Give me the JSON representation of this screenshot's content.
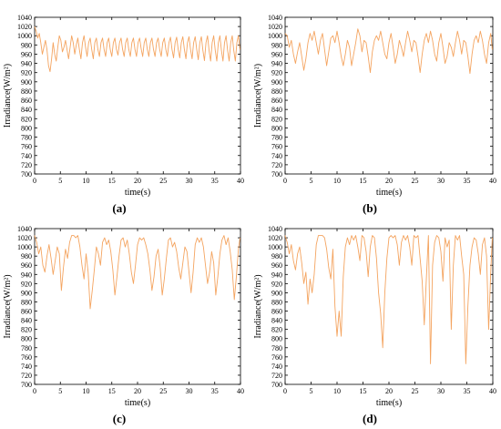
{
  "chart_data": [
    {
      "type": "line",
      "panel_label": "(a)",
      "xlabel": "time(s)",
      "ylabel": "Irradiance(W/m²)",
      "xlim": [
        0,
        40
      ],
      "ylim": [
        700,
        1040
      ],
      "xticks": [
        0,
        5,
        10,
        15,
        20,
        25,
        30,
        35,
        40
      ],
      "yticks": [
        700,
        720,
        740,
        760,
        780,
        800,
        820,
        840,
        860,
        880,
        900,
        920,
        940,
        960,
        980,
        1000,
        1020,
        1040
      ],
      "color": "#F4A460",
      "series": [
        {
          "x": [
            0,
            0.3,
            0.6,
            0.9,
            1.2,
            1.5,
            1.8,
            2.1,
            2.4,
            2.7,
            3.0,
            3.3,
            3.6,
            3.9,
            4.2,
            4.5,
            4.8,
            5.1,
            5.4,
            5.7,
            6.0,
            6.3,
            6.6,
            6.9,
            7.2,
            7.5,
            7.8,
            8.1,
            8.4,
            8.7,
            9.0,
            9.3,
            9.6,
            9.9,
            10.2,
            10.5,
            10.8,
            11.1,
            11.4,
            11.7,
            12.0,
            12.3,
            12.6,
            12.9,
            13.2,
            13.5,
            13.8,
            14.1,
            14.4,
            14.7,
            15.0,
            15.3,
            15.6,
            15.9,
            16.2,
            16.5,
            16.8,
            17.1,
            17.4,
            17.7,
            18.0,
            18.3,
            18.6,
            18.9,
            19.2,
            19.5,
            19.8,
            20.1,
            20.4,
            20.7,
            21.0,
            21.3,
            21.6,
            21.9,
            22.2,
            22.5,
            22.8,
            23.1,
            23.4,
            23.7,
            24.0,
            24.3,
            24.6,
            24.9,
            25.2,
            25.5,
            25.8,
            26.1,
            26.4,
            26.7,
            27.0,
            27.3,
            27.6,
            27.9,
            28.2,
            28.5,
            28.8,
            29.1,
            29.4,
            29.7,
            30.0,
            30.3,
            30.6,
            30.9,
            31.2,
            31.5,
            31.8,
            32.1,
            32.4,
            32.7,
            33.0,
            33.3,
            33.6,
            33.9,
            34.2,
            34.5,
            34.8,
            35.1,
            35.4,
            35.7,
            36.0,
            36.3,
            36.6,
            36.9,
            37.2,
            37.5,
            37.8,
            38.1,
            38.4,
            38.7,
            39.0,
            39.3,
            39.6,
            39.9
          ],
          "y": [
            1020,
            1010,
            995,
            1005,
            985,
            960,
            975,
            990,
            970,
            935,
            922,
            950,
            985,
            960,
            945,
            975,
            1000,
            990,
            965,
            975,
            990,
            970,
            950,
            975,
            1000,
            985,
            960,
            980,
            995,
            970,
            950,
            985,
            1000,
            975,
            955,
            985,
            995,
            970,
            950,
            985,
            995,
            970,
            955,
            985,
            995,
            970,
            955,
            985,
            995,
            970,
            955,
            985,
            995,
            970,
            958,
            985,
            995,
            970,
            955,
            985,
            995,
            970,
            955,
            985,
            995,
            970,
            955,
            985,
            995,
            972,
            955,
            985,
            995,
            970,
            955,
            985,
            995,
            970,
            955,
            985,
            995,
            970,
            955,
            985,
            995,
            970,
            955,
            985,
            997,
            970,
            952,
            985,
            997,
            970,
            952,
            985,
            998,
            970,
            950,
            985,
            998,
            970,
            950,
            985,
            998,
            970,
            948,
            985,
            998,
            968,
            946,
            985,
            1000,
            968,
            945,
            985,
            1000,
            968,
            945,
            985,
            1000,
            968,
            945,
            985,
            1000,
            968,
            945,
            985,
            1000,
            968,
            945,
            985,
            1000,
            970
          ]
        }
      ]
    },
    {
      "type": "line",
      "panel_label": "(b)",
      "xlabel": "time(s)",
      "ylabel": "Irradiance(W/m²)",
      "xlim": [
        0,
        40
      ],
      "ylim": [
        700,
        1040
      ],
      "xticks": [
        0,
        5,
        10,
        15,
        20,
        25,
        30,
        35,
        40
      ],
      "yticks": [
        700,
        720,
        740,
        760,
        780,
        800,
        820,
        840,
        860,
        880,
        900,
        920,
        940,
        960,
        980,
        1000,
        1020,
        1040
      ],
      "color": "#F4A460",
      "series": [
        {
          "x": [
            0,
            0.4,
            0.8,
            1.2,
            1.6,
            2.0,
            2.4,
            2.8,
            3.2,
            3.6,
            4.0,
            4.4,
            4.8,
            5.2,
            5.6,
            6.0,
            6.4,
            6.8,
            7.2,
            7.6,
            8.0,
            8.4,
            8.8,
            9.2,
            9.6,
            10.0,
            10.4,
            10.8,
            11.2,
            11.6,
            12.0,
            12.4,
            12.8,
            13.2,
            13.6,
            14.0,
            14.4,
            14.8,
            15.2,
            15.6,
            16.0,
            16.4,
            16.8,
            17.2,
            17.6,
            18.0,
            18.4,
            18.8,
            19.2,
            19.6,
            20.0,
            20.4,
            20.8,
            21.2,
            21.6,
            22.0,
            22.4,
            22.8,
            23.2,
            23.6,
            24.0,
            24.4,
            24.8,
            25.2,
            25.6,
            26.0,
            26.4,
            26.8,
            27.2,
            27.6,
            28.0,
            28.4,
            28.8,
            29.2,
            29.6,
            30.0,
            30.4,
            30.8,
            31.2,
            31.6,
            32.0,
            32.4,
            32.8,
            33.2,
            33.6,
            34.0,
            34.4,
            34.8,
            35.2,
            35.6,
            36.0,
            36.4,
            36.8,
            37.2,
            37.6,
            38.0,
            38.4,
            38.8,
            39.2,
            39.6,
            39.9
          ],
          "y": [
            1005,
            1000,
            975,
            990,
            960,
            940,
            965,
            985,
            955,
            925,
            950,
            985,
            1005,
            990,
            1010,
            985,
            960,
            990,
            1005,
            970,
            935,
            965,
            995,
            1000,
            985,
            1010,
            985,
            955,
            935,
            960,
            990,
            975,
            935,
            960,
            985,
            1015,
            1000,
            965,
            990,
            985,
            955,
            920,
            965,
            990,
            1000,
            990,
            1010,
            985,
            960,
            950,
            985,
            1005,
            975,
            940,
            960,
            990,
            975,
            955,
            985,
            1010,
            990,
            965,
            990,
            985,
            955,
            920,
            960,
            990,
            1005,
            985,
            1010,
            990,
            960,
            945,
            985,
            1005,
            975,
            940,
            955,
            985,
            975,
            955,
            985,
            1010,
            990,
            960,
            990,
            985,
            955,
            918,
            960,
            990,
            1000,
            985,
            1010,
            990,
            960,
            940,
            985,
            1005,
            970
          ]
        }
      ]
    },
    {
      "type": "line",
      "panel_label": "(c)",
      "xlabel": "time(s)",
      "ylabel": "Irradiance(W/m²)",
      "xlim": [
        0,
        40
      ],
      "ylim": [
        700,
        1040
      ],
      "xticks": [
        0,
        5,
        10,
        15,
        20,
        25,
        30,
        35,
        40
      ],
      "yticks": [
        700,
        720,
        740,
        760,
        780,
        800,
        820,
        840,
        860,
        880,
        900,
        920,
        940,
        960,
        980,
        1000,
        1020,
        1040
      ],
      "color": "#F4A460",
      "series": [
        {
          "x": [
            0,
            0.4,
            0.8,
            1.2,
            1.6,
            2.0,
            2.4,
            2.8,
            3.2,
            3.6,
            4.0,
            4.4,
            4.8,
            5.2,
            5.6,
            6.0,
            6.4,
            6.8,
            7.2,
            7.6,
            8.0,
            8.4,
            8.8,
            9.2,
            9.6,
            10.0,
            10.4,
            10.8,
            11.2,
            11.6,
            12.0,
            12.4,
            12.8,
            13.2,
            13.6,
            14.0,
            14.4,
            14.8,
            15.2,
            15.6,
            16.0,
            16.4,
            16.8,
            17.2,
            17.6,
            18.0,
            18.4,
            18.8,
            19.2,
            19.6,
            20.0,
            20.4,
            20.8,
            21.2,
            21.6,
            22.0,
            22.4,
            22.8,
            23.2,
            23.6,
            24.0,
            24.4,
            24.8,
            25.2,
            25.6,
            26.0,
            26.4,
            26.8,
            27.2,
            27.6,
            28.0,
            28.4,
            28.8,
            29.2,
            29.6,
            30.0,
            30.4,
            30.8,
            31.2,
            31.6,
            32.0,
            32.4,
            32.8,
            33.2,
            33.6,
            34.0,
            34.4,
            34.8,
            35.2,
            35.6,
            36.0,
            36.4,
            36.8,
            37.2,
            37.6,
            38.0,
            38.4,
            38.8,
            39.2,
            39.6,
            39.9
          ],
          "y": [
            1025,
            1010,
            985,
            1000,
            960,
            945,
            980,
            1005,
            975,
            940,
            970,
            1000,
            985,
            905,
            955,
            995,
            975,
            1010,
            1025,
            1025,
            1020,
            1025,
            1000,
            960,
            930,
            985,
            945,
            865,
            905,
            950,
            1000,
            985,
            960,
            1010,
            1020,
            1005,
            1015,
            990,
            950,
            895,
            935,
            980,
            1015,
            1020,
            1000,
            1015,
            985,
            945,
            920,
            960,
            1005,
            1020,
            1015,
            1020,
            1005,
            985,
            950,
            905,
            935,
            980,
            995,
            955,
            895,
            930,
            975,
            1015,
            1020,
            1000,
            1010,
            990,
            955,
            930,
            965,
            1000,
            990,
            945,
            900,
            945,
            1005,
            1020,
            1010,
            1020,
            1000,
            960,
            920,
            945,
            990,
            965,
            895,
            935,
            985,
            1015,
            1025,
            1005,
            1020,
            990,
            950,
            885,
            935,
            995,
            1020
          ]
        }
      ]
    },
    {
      "type": "line",
      "panel_label": "(d)",
      "xlabel": "time(s)",
      "ylabel": "Irradiance(W/m²)",
      "xlim": [
        0,
        40
      ],
      "ylim": [
        700,
        1040
      ],
      "xticks": [
        0,
        5,
        10,
        15,
        20,
        25,
        30,
        35,
        40
      ],
      "yticks": [
        700,
        720,
        740,
        760,
        780,
        800,
        820,
        840,
        860,
        880,
        900,
        920,
        940,
        960,
        980,
        1000,
        1020,
        1040
      ],
      "color": "#F4A460",
      "series": [
        {
          "x": [
            0,
            0.4,
            0.8,
            1.2,
            1.6,
            2.0,
            2.4,
            2.8,
            3.2,
            3.6,
            4.0,
            4.4,
            4.8,
            5.2,
            5.6,
            6.0,
            6.4,
            6.8,
            7.2,
            7.6,
            8.0,
            8.4,
            8.8,
            9.2,
            9.6,
            10.0,
            10.4,
            10.8,
            11.2,
            11.6,
            12.0,
            12.4,
            12.8,
            13.2,
            13.6,
            14.0,
            14.4,
            14.8,
            15.2,
            15.6,
            16.0,
            16.4,
            16.8,
            17.2,
            17.6,
            18.0,
            18.4,
            18.8,
            19.2,
            19.6,
            20.0,
            20.4,
            20.8,
            21.2,
            21.6,
            22.0,
            22.4,
            22.8,
            23.2,
            23.6,
            24.0,
            24.4,
            24.8,
            25.2,
            25.6,
            26.0,
            26.4,
            26.8,
            27.2,
            27.6,
            28.0,
            28.4,
            28.8,
            29.2,
            29.6,
            30.0,
            30.4,
            30.8,
            31.2,
            31.6,
            32.0,
            32.4,
            32.8,
            33.2,
            33.6,
            34.0,
            34.4,
            34.8,
            35.2,
            35.6,
            36.0,
            36.4,
            36.8,
            37.2,
            37.6,
            38.0,
            38.4,
            38.8,
            39.2,
            39.6,
            39.9
          ],
          "y": [
            1025,
            1010,
            985,
            1005,
            970,
            950,
            985,
            1000,
            965,
            920,
            945,
            875,
            930,
            900,
            940,
            1005,
            1025,
            1025,
            1025,
            1020,
            995,
            955,
            930,
            995,
            870,
            805,
            860,
            805,
            935,
            1000,
            1020,
            1005,
            1025,
            1015,
            1025,
            1000,
            970,
            1025,
            1020,
            990,
            935,
            1000,
            1025,
            1020,
            975,
            900,
            855,
            780,
            900,
            975,
            1020,
            1025,
            1020,
            1025,
            1005,
            960,
            1010,
            1025,
            1015,
            1025,
            1000,
            960,
            1025,
            1020,
            1025,
            975,
            925,
            830,
            930,
            1025,
            745,
            960,
            1010,
            1025,
            1020,
            990,
            925,
            1020,
            1000,
            1015,
            820,
            960,
            1025,
            1015,
            1025,
            980,
            940,
            745,
            870,
            960,
            1000,
            1020,
            1015,
            985,
            940,
            1005,
            1020,
            980,
            820,
            945,
            1020
          ]
        }
      ]
    }
  ]
}
